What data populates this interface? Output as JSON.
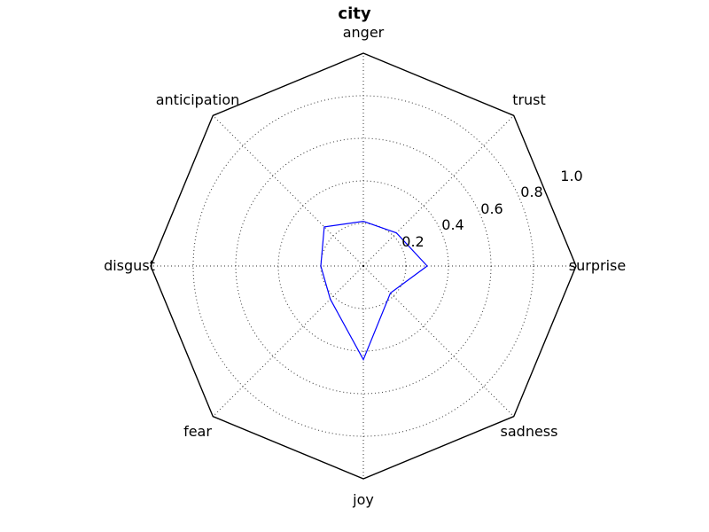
{
  "chart_data": {
    "type": "radar",
    "title": "city",
    "categories": [
      "anger",
      "trust",
      "surprise",
      "sadness",
      "joy",
      "fear",
      "disgust",
      "anticipation"
    ],
    "series": [
      {
        "values": [
          0.21,
          0.22,
          0.3,
          0.18,
          0.44,
          0.22,
          0.2,
          0.26
        ]
      }
    ],
    "radial_ticks": [
      "0.2",
      "0.4",
      "0.6",
      "0.8",
      "1.0"
    ],
    "rlim": [
      0,
      1.0
    ],
    "grid": true,
    "colors": {
      "series": "#0000ff",
      "frame": "#000000",
      "grid": "#000000"
    }
  }
}
